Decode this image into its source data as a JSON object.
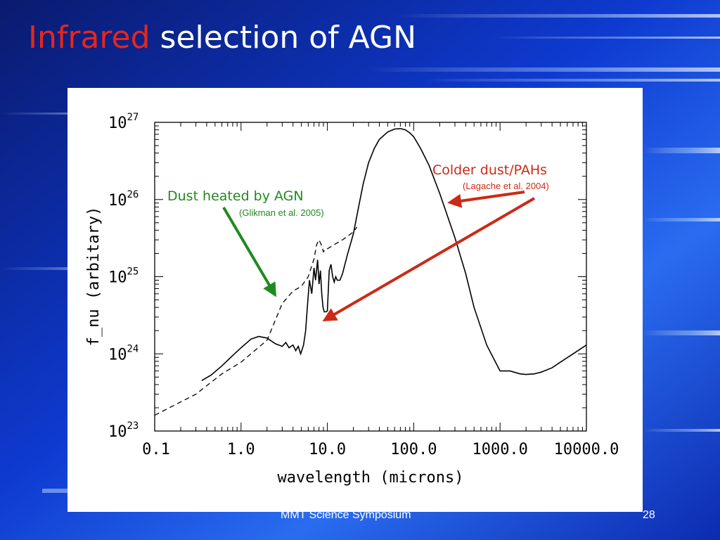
{
  "slide": {
    "title_highlight": "Infrared",
    "title_rest": " selection of AGN",
    "footer": "MMT Science Symposium",
    "page_number": "28",
    "accent_color": "#e8261a"
  },
  "chart_data": {
    "type": "line",
    "xlabel": "wavelength (microns)",
    "ylabel": "f_nu (arbitary)",
    "x_scale": "log",
    "y_scale": "log",
    "xlim": [
      0.1,
      10000
    ],
    "ylim": [
      1e+23,
      1e+27
    ],
    "x_ticks": [
      {
        "value": 0.1,
        "label": "0.1"
      },
      {
        "value": 1,
        "label": "1.0"
      },
      {
        "value": 10,
        "label": "10.0"
      },
      {
        "value": 100,
        "label": "100.0"
      },
      {
        "value": 1000,
        "label": "1000.0"
      },
      {
        "value": 10000,
        "label": "10000.0"
      }
    ],
    "y_ticks": [
      {
        "value": 1e+23,
        "base": "10",
        "exp": "23"
      },
      {
        "value": 1e+24,
        "base": "10",
        "exp": "24"
      },
      {
        "value": 1e+25,
        "base": "10",
        "exp": "25"
      },
      {
        "value": 1e+26,
        "base": "10",
        "exp": "26"
      },
      {
        "value": 1e+27,
        "base": "10",
        "exp": "27"
      }
    ],
    "grid": false,
    "series": [
      {
        "style": "solid",
        "x": [
          0.35,
          0.45,
          0.6,
          0.8,
          1.0,
          1.3,
          1.6,
          2.0,
          2.5,
          3.0,
          3.3,
          3.6,
          4.0,
          4.3,
          4.6,
          4.9,
          5.3,
          5.6,
          5.9,
          6.2,
          6.6,
          7.0,
          7.3,
          7.7,
          8.0,
          8.3,
          8.6,
          8.9,
          9.2,
          9.6,
          10.0,
          10.5,
          11.0,
          11.5,
          12.0,
          12.5,
          13.0,
          14.0,
          15.0,
          17.0,
          20.0,
          23.0,
          26.0,
          30.0,
          35.0,
          40.0,
          50.0,
          60.0,
          70.0,
          80.0,
          90.0,
          100.0,
          120.0,
          150.0,
          200.0,
          300.0,
          400.0,
          500.0,
          700.0,
          1000.0,
          1300.0,
          1700.0,
          2000.0,
          2500.0,
          3000.0,
          4000.0,
          5000.0,
          7000.0,
          10000.0
        ],
        "y": [
          4.5e+23,
          5.3e+23,
          7e+23,
          9.5e+23,
          1.2e+24,
          1.55e+24,
          1.68e+24,
          1.6e+24,
          1.35e+24,
          1.25e+24,
          1.4e+24,
          1.2e+24,
          1.3e+24,
          1.1e+24,
          1.25e+24,
          1e+24,
          1.3e+24,
          2e+24,
          4.5e+24,
          9e+24,
          6e+24,
          1.3e+25,
          9e+24,
          1.65e+25,
          8e+24,
          1.2e+25,
          6e+24,
          4e+24,
          3.5e+24,
          3.5e+24,
          3.6e+24,
          1.2e+25,
          1.45e+25,
          1e+25,
          8.5e+24,
          1e+25,
          9e+24,
          9e+24,
          1.1e+25,
          1.9e+25,
          3.6e+25,
          8e+25,
          1.6e+26,
          3e+26,
          4.6e+26,
          6e+26,
          7.5e+26,
          8.2e+26,
          8.3e+26,
          8e+26,
          7.3e+26,
          6.5e+26,
          4.6e+26,
          2.8e+26,
          1.2e+26,
          3.2e+25,
          1.1e+25,
          4e+24,
          1.3e+24,
          6e+23,
          6e+23,
          5.5e+23,
          5.4e+23,
          5.5e+23,
          5.8e+23,
          6.6e+23,
          7.8e+23,
          1e+24,
          1.3e+24
        ]
      },
      {
        "style": "dashed",
        "x": [
          0.1,
          0.3,
          0.6,
          1.0,
          2.0,
          3.0,
          4.0,
          5.0,
          6.0,
          7.0,
          7.5,
          8.0,
          8.5,
          9.0,
          9.5,
          10.0,
          12.0,
          15.0,
          20.0,
          22.0
        ],
        "y": [
          1.6e+23,
          3e+23,
          5.5e+23,
          7.8e+23,
          1.5e+24,
          4.5e+24,
          6.5e+24,
          7.5e+24,
          1e+25,
          1.7e+25,
          2.6e+25,
          3e+25,
          2.6e+25,
          2.1e+25,
          2.3e+25,
          2.3e+25,
          2.6e+25,
          3e+25,
          3.8e+25,
          4.4e+25
        ]
      }
    ],
    "annotations": [
      {
        "text": "Dust heated by AGN",
        "color": "#1f8a1f",
        "points_to_x": 3.0,
        "points_to_y": 7e+24
      },
      {
        "text": "(Glikman et al. 2005)",
        "color": "#1f8a1f"
      },
      {
        "text": "Colder dust/PAHs",
        "color": "#cc2a16",
        "points_to_x": 11.0,
        "points_to_y": 3.4e+24
      },
      {
        "text": "(Lagache et al. 2004)",
        "color": "#cc2a16",
        "points_to_x": 200.0,
        "points_to_y": 1.3e+26
      }
    ]
  }
}
